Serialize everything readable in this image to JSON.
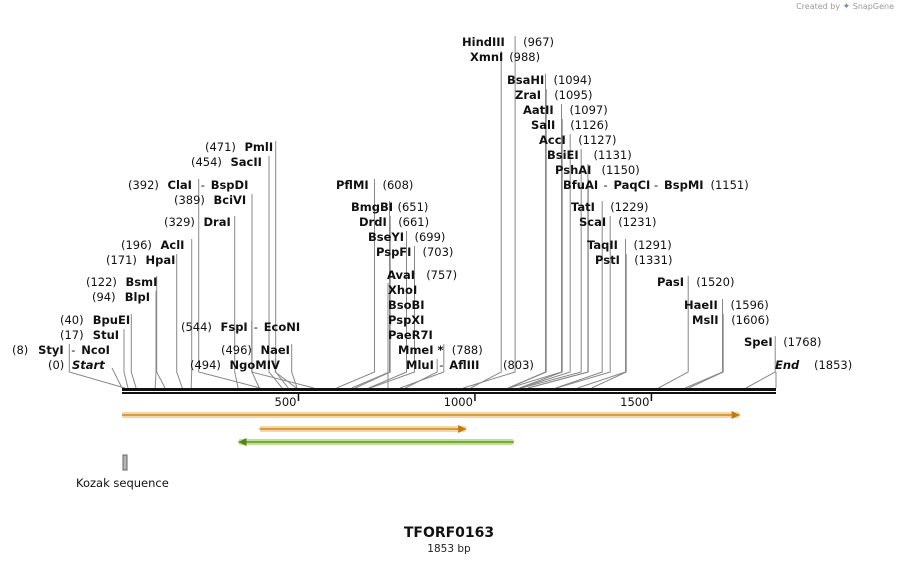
{
  "branding": {
    "created_by": "Created by",
    "product": "SnapGene"
  },
  "sequence": {
    "name": "TFORF0163",
    "length_label": "1853 bp",
    "length": 1853
  },
  "colors": {
    "backbone": "#111111",
    "orange_feature": "#f0b45a",
    "green_feature": "#8cc63f"
  },
  "ticks": [
    {
      "value": 500,
      "label": "500"
    },
    {
      "value": 1000,
      "label": "1000"
    },
    {
      "value": 1500,
      "label": "1500"
    }
  ],
  "start": {
    "label": "Start",
    "pos": 0,
    "pos_label": "(0)"
  },
  "end": {
    "label": "End",
    "pos": 1853,
    "pos_label": "(1853)"
  },
  "sites": [
    {
      "pos_label": "(8)",
      "name": "StyI",
      "name2": "NcoI",
      "pos": 8
    },
    {
      "pos_label": "(17)",
      "name": "StuI",
      "pos": 17
    },
    {
      "pos_label": "(40)",
      "name": "BpuEI",
      "pos": 40
    },
    {
      "pos_label": "(94)",
      "name": "BlpI",
      "pos": 94
    },
    {
      "pos_label": "(122)",
      "name": "BsmI",
      "pos": 122
    },
    {
      "pos_label": "(171)",
      "name": "HpaI",
      "pos": 171
    },
    {
      "pos_label": "(196)",
      "name": "AclI",
      "pos": 196
    },
    {
      "pos_label": "(329)",
      "name": "DraI",
      "pos": 329
    },
    {
      "pos_label": "(389)",
      "name": "BciVI",
      "pos": 389
    },
    {
      "pos_label": "(392)",
      "name": "ClaI",
      "name2": "BspDI",
      "pos": 392
    },
    {
      "pos_label": "(454)",
      "name": "SacII",
      "pos": 454
    },
    {
      "pos_label": "(471)",
      "name": "PmlI",
      "pos": 471
    },
    {
      "pos_label": "(494)",
      "name": "NgoMIV",
      "pos": 494
    },
    {
      "pos_label": "(496)",
      "name": "NaeI",
      "pos": 496
    },
    {
      "pos_label": "(544)",
      "name": "FspI",
      "name2": "EcoNI",
      "pos": 544
    },
    {
      "pos_label": "(608)",
      "name": "PflMI",
      "pos": 608
    },
    {
      "pos_label": "(651)",
      "name": "BmgBI",
      "pos": 651
    },
    {
      "pos_label": "(661)",
      "name": "DrdI",
      "pos": 661
    },
    {
      "pos_label": "(699)",
      "name": "BseYI",
      "pos": 699
    },
    {
      "pos_label": "(703)",
      "name": "PspFI",
      "pos": 703
    },
    {
      "pos_label": "(757)",
      "name": "AvaI",
      "pos": 757
    },
    {
      "name": "XhoI",
      "pos": 757
    },
    {
      "name": "BsoBI",
      "pos": 757
    },
    {
      "name": "PspXI",
      "pos": 757
    },
    {
      "name": "PaeR7I",
      "pos": 757
    },
    {
      "pos_label": "(788)",
      "name": "MmeI *",
      "pos": 788
    },
    {
      "pos_label": "(803)",
      "name": "MluI",
      "name2": "AflIII",
      "pos": 803
    },
    {
      "pos_label": "(967)",
      "name": "HindIII",
      "pos": 967
    },
    {
      "pos_label": "(988)",
      "name": "XmnI",
      "pos": 988
    },
    {
      "pos_label": "(1094)",
      "name": "BsaHI",
      "pos": 1094
    },
    {
      "pos_label": "(1095)",
      "name": "ZraI",
      "pos": 1095
    },
    {
      "pos_label": "(1097)",
      "name": "AatII",
      "pos": 1097
    },
    {
      "pos_label": "(1126)",
      "name": "SalI",
      "pos": 1126
    },
    {
      "pos_label": "(1127)",
      "name": "AccI",
      "pos": 1127
    },
    {
      "pos_label": "(1131)",
      "name": "BsiEI",
      "pos": 1131
    },
    {
      "pos_label": "(1150)",
      "name": "PshAI",
      "pos": 1150
    },
    {
      "pos_label": "(1151)",
      "name": "BfuAI",
      "name2": "PaqCI",
      "name3": "BspMI",
      "pos": 1151
    },
    {
      "pos_label": "(1229)",
      "name": "TatI",
      "pos": 1229
    },
    {
      "pos_label": "(1231)",
      "name": "ScaI",
      "pos": 1231
    },
    {
      "pos_label": "(1291)",
      "name": "TaqII",
      "pos": 1291
    },
    {
      "pos_label": "(1331)",
      "name": "PstI",
      "pos": 1331
    },
    {
      "pos_label": "(1520)",
      "name": "PasI",
      "pos": 1520
    },
    {
      "pos_label": "(1596)",
      "name": "HaeII",
      "pos": 1596
    },
    {
      "pos_label": "(1606)",
      "name": "MslI",
      "pos": 1606
    },
    {
      "pos_label": "(1768)",
      "name": "SpeI",
      "pos": 1768
    }
  ],
  "features": [
    {
      "name": "orange-feature-long",
      "start": 0,
      "end": 1750,
      "direction": "forward",
      "color": "#f0b45a",
      "stroke": "#c07a10"
    },
    {
      "name": "orange-feature-short",
      "start": 390,
      "end": 975,
      "direction": "forward",
      "color": "#f0b45a",
      "stroke": "#c07a10"
    },
    {
      "name": "green-feature",
      "start": 330,
      "end": 1110,
      "direction": "reverse",
      "color": "#8cc63f",
      "stroke": "#4e8a12"
    },
    {
      "name": "kozak-box",
      "start": 0,
      "end": 10,
      "direction": "none",
      "color": "#b5b5b5",
      "stroke": "#666666"
    }
  ],
  "kozak": {
    "label": "Kozak sequence"
  }
}
